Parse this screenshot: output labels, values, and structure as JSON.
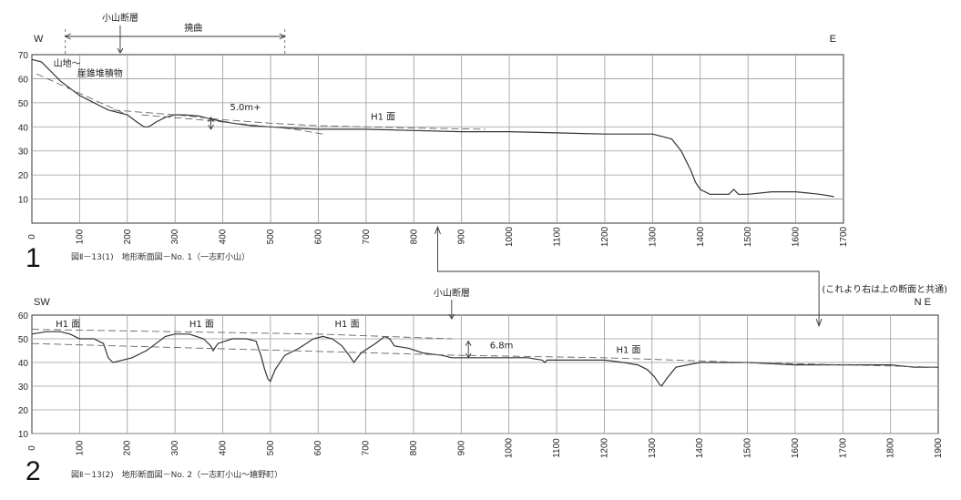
{
  "chart_data": [
    {
      "type": "line",
      "panel_number": "1",
      "caption": "図Ⅱ－13(1)　地形断面図－No. 1（一志町小山）",
      "left_direction": "W",
      "right_direction": "E",
      "xlim": [
        0,
        1700
      ],
      "ylim": [
        0,
        70
      ],
      "x_ticks": [
        0,
        100,
        200,
        300,
        400,
        500,
        600,
        700,
        800,
        900,
        1000,
        1100,
        1200,
        1300,
        1400,
        1500,
        1600,
        1700
      ],
      "y_ticks": [
        10,
        20,
        30,
        40,
        50,
        60,
        70
      ],
      "grid": true,
      "series": [
        {
          "role": "profile",
          "x": [
            0,
            20,
            40,
            60,
            80,
            100,
            120,
            140,
            160,
            180,
            200,
            220,
            235,
            245,
            260,
            280,
            300,
            320,
            350,
            380,
            420,
            460,
            500,
            540,
            600,
            700,
            800,
            900,
            1000,
            1100,
            1200,
            1300,
            1340,
            1360,
            1380,
            1390,
            1400,
            1420,
            1440,
            1460,
            1470,
            1480,
            1500,
            1550,
            1600,
            1650,
            1680
          ],
          "y": [
            68,
            67,
            63,
            59,
            56,
            53,
            51,
            49,
            47,
            46,
            45,
            42,
            40,
            40,
            42,
            44,
            45,
            45,
            44.5,
            43,
            41.5,
            40.5,
            40,
            39.5,
            39,
            39,
            38.5,
            38,
            38,
            37.5,
            37,
            37,
            35,
            30,
            22,
            17,
            14,
            12,
            12,
            12,
            14,
            12,
            12,
            13,
            13,
            12,
            11
          ]
        },
        {
          "role": "slope-trend",
          "x": [
            10,
            200
          ],
          "y": [
            62,
            45
          ]
        },
        {
          "role": "h1-surface",
          "x": [
            170,
            300,
            400,
            500,
            600,
            700,
            800,
            950
          ],
          "y": [
            47,
            45,
            43,
            41.5,
            40.5,
            40,
            39.5,
            39
          ]
        },
        {
          "role": "lower-trend",
          "x": [
            230,
            350,
            450,
            550,
            610
          ],
          "y": [
            45,
            43,
            41,
            39,
            37
          ]
        }
      ],
      "annotations": [
        {
          "text": "山地～",
          "x": 45,
          "y": 65
        },
        {
          "text": "崖錐堆積物",
          "x": 95,
          "y": 61
        },
        {
          "text": "5.0m+",
          "x": 415,
          "y": 47
        },
        {
          "text": "H1 面",
          "x": 710,
          "y": 43
        }
      ],
      "fault_label": "小山断層",
      "fault_x": 185,
      "flexure_label": "撓曲",
      "flexure_range": [
        70,
        530
      ],
      "offset": {
        "x": 375,
        "y_top": 44,
        "y_bottom": 39
      }
    },
    {
      "type": "line",
      "panel_number": "2",
      "caption": "図Ⅱ－13(2)　地形断面図－No. 2（一志町小山～嬉野町）",
      "left_direction": "SW",
      "right_direction": "N E",
      "xlim": [
        0,
        1900
      ],
      "ylim": [
        10,
        60
      ],
      "x_ticks": [
        0,
        100,
        200,
        300,
        400,
        500,
        600,
        700,
        800,
        900,
        1000,
        1100,
        1200,
        1300,
        1400,
        1500,
        1600,
        1700,
        1800,
        1900
      ],
      "y_ticks": [
        10,
        20,
        30,
        40,
        50,
        60
      ],
      "grid": true,
      "series": [
        {
          "role": "profile",
          "x": [
            0,
            30,
            60,
            80,
            100,
            130,
            150,
            160,
            170,
            190,
            210,
            240,
            260,
            280,
            300,
            330,
            360,
            375,
            380,
            390,
            420,
            450,
            470,
            480,
            488,
            495,
            500,
            510,
            530,
            560,
            590,
            610,
            630,
            650,
            665,
            675,
            690,
            720,
            740,
            750,
            760,
            790,
            820,
            860,
            880,
            900,
            930,
            960,
            1000,
            1040,
            1070,
            1075,
            1080,
            1120,
            1160,
            1200,
            1240,
            1270,
            1290,
            1305,
            1315,
            1320,
            1330,
            1350,
            1400,
            1500,
            1600,
            1700,
            1800,
            1850,
            1900
          ],
          "y": [
            52,
            53,
            53,
            52,
            50,
            50,
            48,
            42,
            40,
            41,
            42,
            45,
            48,
            51,
            52,
            52,
            50,
            47,
            45,
            48,
            50,
            50,
            49,
            43,
            37,
            33,
            32,
            37,
            43,
            46,
            50,
            51,
            50,
            47,
            43,
            40,
            44,
            48,
            51,
            50,
            47,
            46,
            44,
            43,
            42,
            42,
            42,
            42,
            42,
            42,
            41,
            40,
            41,
            41,
            41,
            41,
            40,
            39,
            37,
            34,
            31,
            30,
            33,
            38,
            40,
            40,
            39,
            39,
            39,
            38,
            38
          ]
        },
        {
          "role": "h1-surface",
          "x": [
            0,
            300,
            600,
            880
          ],
          "y": [
            54,
            53,
            52,
            50
          ]
        },
        {
          "role": "lower-surface",
          "x": [
            0,
            900,
            1200,
            1500,
            1900
          ],
          "y": [
            48,
            43,
            42,
            40,
            38
          ]
        }
      ],
      "annotations": [
        {
          "text": "H1 面",
          "x": 50,
          "y": 55
        },
        {
          "text": "H1 面",
          "x": 330,
          "y": 55
        },
        {
          "text": "H1 面",
          "x": 635,
          "y": 55
        },
        {
          "text": "6.8m",
          "x": 960,
          "y": 46
        },
        {
          "text": "H1 面",
          "x": 1225,
          "y": 44
        }
      ],
      "fault_label": "小山断層",
      "fault_x": 880,
      "offset": {
        "x": 915,
        "y_top": 49,
        "y_bottom": 42
      }
    }
  ],
  "shared_note": "(これより右は上の断面と共通)",
  "link_arrow": {
    "from_panel2_x": 1650,
    "to_panel1_x": 850
  }
}
